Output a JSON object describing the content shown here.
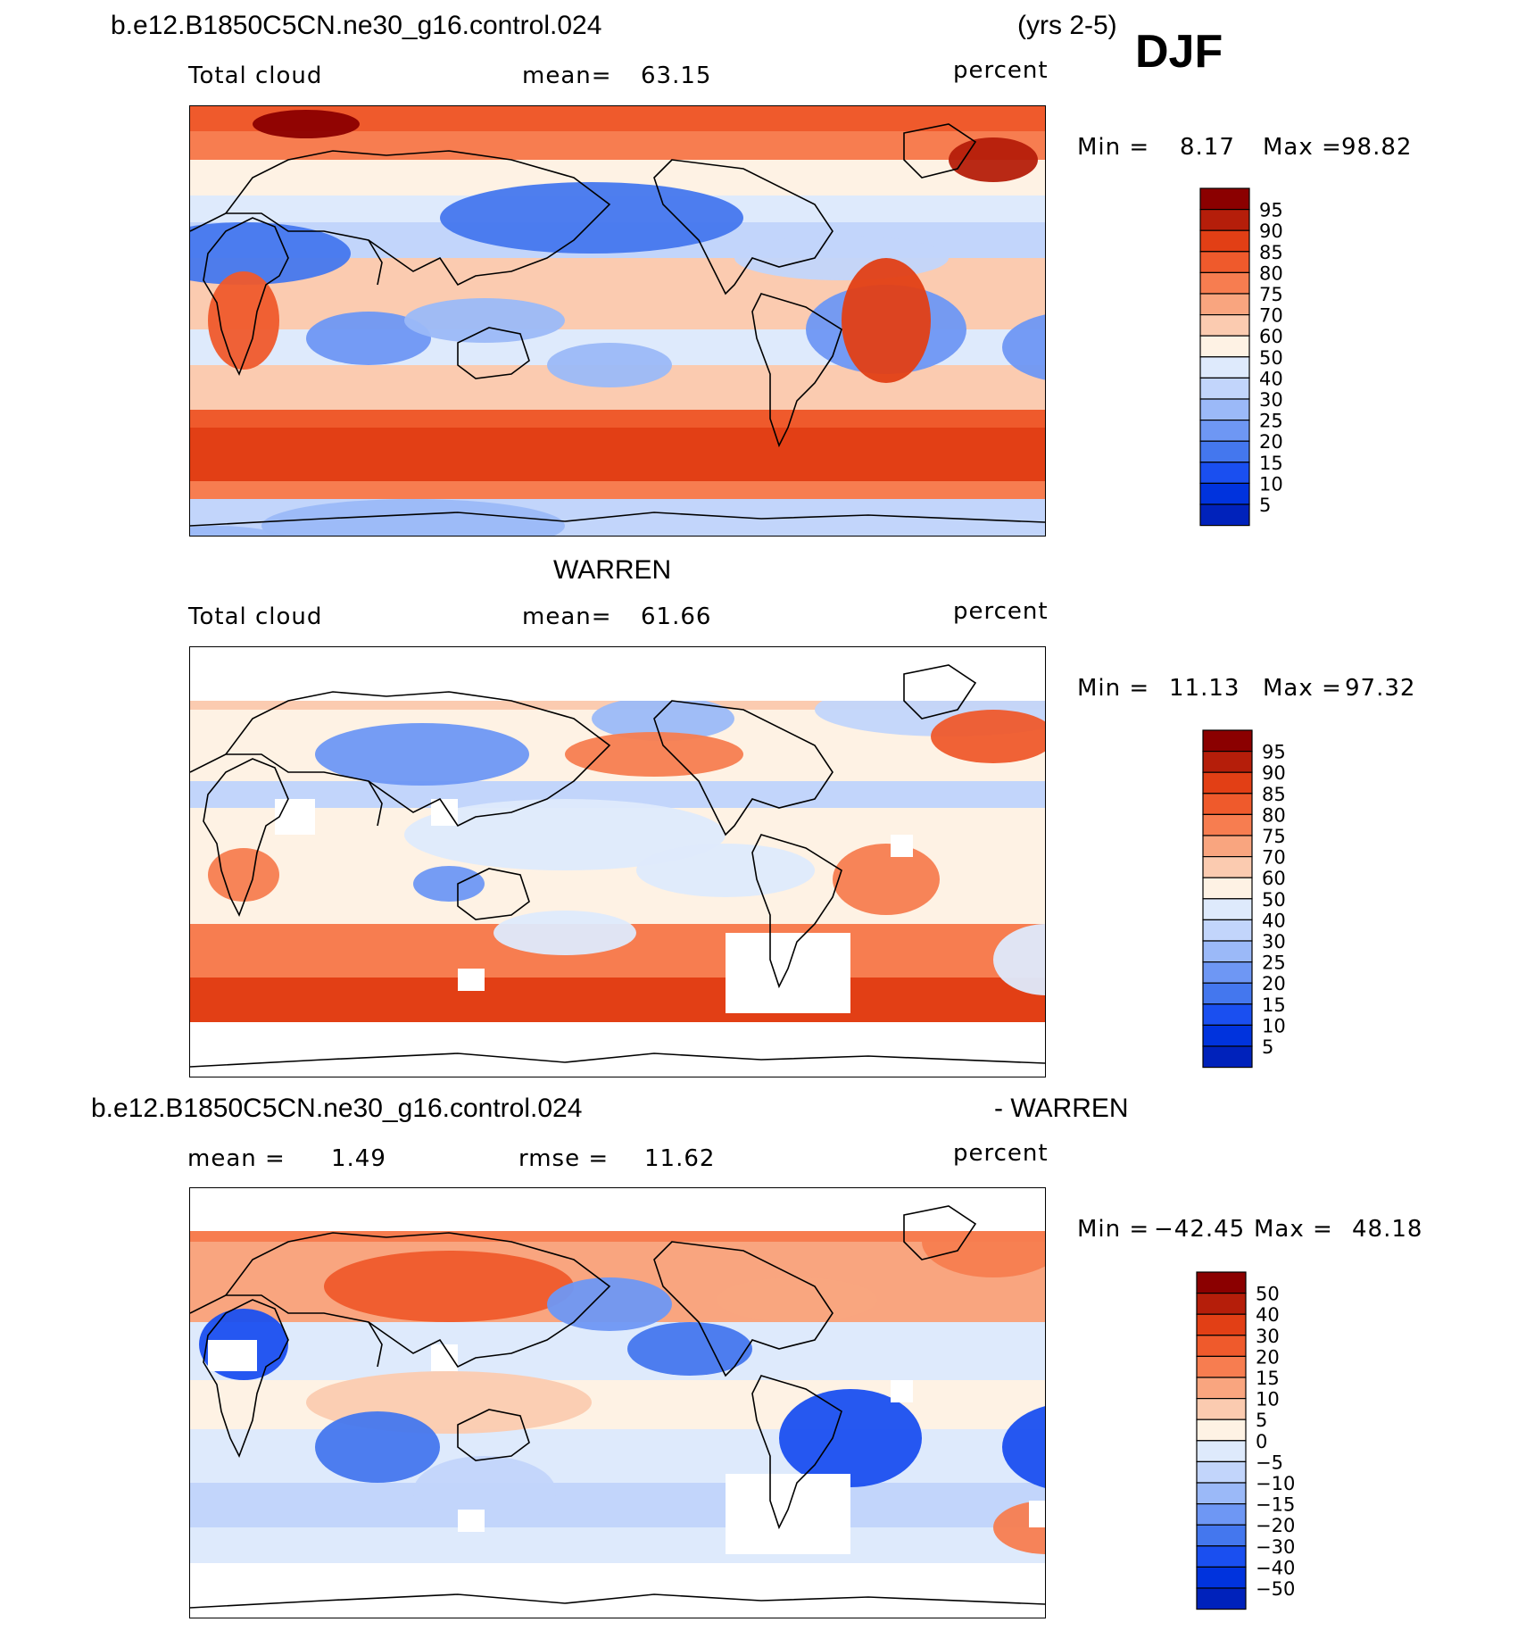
{
  "header": {
    "case_name": "b.e12.B1850C5CN.ne30_g16.control.024",
    "years": "(yrs 2-5)",
    "season": "DJF"
  },
  "colors": {
    "scale": [
      "#00008b",
      "#0022bb",
      "#0033dd",
      "#1a4ff0",
      "#4477ee",
      "#6e97f4",
      "#9bb9f8",
      "#c2d5fb",
      "#deeafc",
      "#fef2e4",
      "#fbcbb0",
      "#f9a57f",
      "#f77d50",
      "#ef5a2c",
      "#e23f15",
      "#b51e0a",
      "#8b0000"
    ],
    "coast": "#000000",
    "missing": "#ffffff"
  },
  "panels": [
    {
      "id": "model",
      "variable": "Total cloud",
      "mean_label": "mean=",
      "mean_value": "63.15",
      "units": "percent",
      "min_label": "Min =",
      "min_value": "8.17",
      "max_label": "Max =",
      "max_value": "98.82",
      "colorbar_labels": [
        "95",
        "90",
        "85",
        "80",
        "75",
        "70",
        "60",
        "50",
        "40",
        "30",
        "25",
        "20",
        "15",
        "10",
        "5"
      ]
    },
    {
      "id": "obs",
      "title": "WARREN",
      "variable": "Total cloud",
      "mean_label": "mean=",
      "mean_value": "61.66",
      "units": "percent",
      "min_label": "Min =",
      "min_value": "11.13",
      "max_label": "Max =",
      "max_value": "97.32",
      "colorbar_labels": [
        "95",
        "90",
        "85",
        "80",
        "75",
        "70",
        "60",
        "50",
        "40",
        "30",
        "25",
        "20",
        "15",
        "10",
        "5"
      ]
    },
    {
      "id": "diff",
      "title_left": "b.e12.B1850C5CN.ne30_g16.control.024",
      "title_right": "- WARREN",
      "mean_label": "mean =",
      "mean_value": "1.49",
      "rmse_label": "rmse =",
      "rmse_value": "11.62",
      "units": "percent",
      "min_label": "Min =",
      "min_value": "−42.45",
      "max_label": "Max =",
      "max_value": "48.18",
      "colorbar_labels": [
        "50",
        "40",
        "30",
        "20",
        "15",
        "10",
        "5",
        "0",
        "−5",
        "−10",
        "−15",
        "−20",
        "−30",
        "−40",
        "−50"
      ]
    }
  ],
  "chart_data": [
    {
      "type": "heatmap",
      "title": "Total cloud",
      "units": "percent",
      "mean": 63.15,
      "min": 8.17,
      "max": 98.82,
      "levels": [
        5,
        10,
        15,
        20,
        25,
        30,
        40,
        50,
        60,
        70,
        75,
        80,
        85,
        90,
        95
      ]
    },
    {
      "type": "heatmap",
      "title": "WARREN Total cloud",
      "units": "percent",
      "mean": 61.66,
      "min": 11.13,
      "max": 97.32,
      "levels": [
        5,
        10,
        15,
        20,
        25,
        30,
        40,
        50,
        60,
        70,
        75,
        80,
        85,
        90,
        95
      ]
    },
    {
      "type": "heatmap",
      "title": "b.e12.B1850C5CN.ne30_g16.control.024 - WARREN",
      "units": "percent",
      "mean": 1.49,
      "rmse": 11.62,
      "min": -42.45,
      "max": 48.18,
      "levels": [
        -50,
        -40,
        -30,
        -20,
        -15,
        -10,
        -5,
        0,
        5,
        10,
        15,
        20,
        30,
        40,
        50
      ]
    }
  ]
}
